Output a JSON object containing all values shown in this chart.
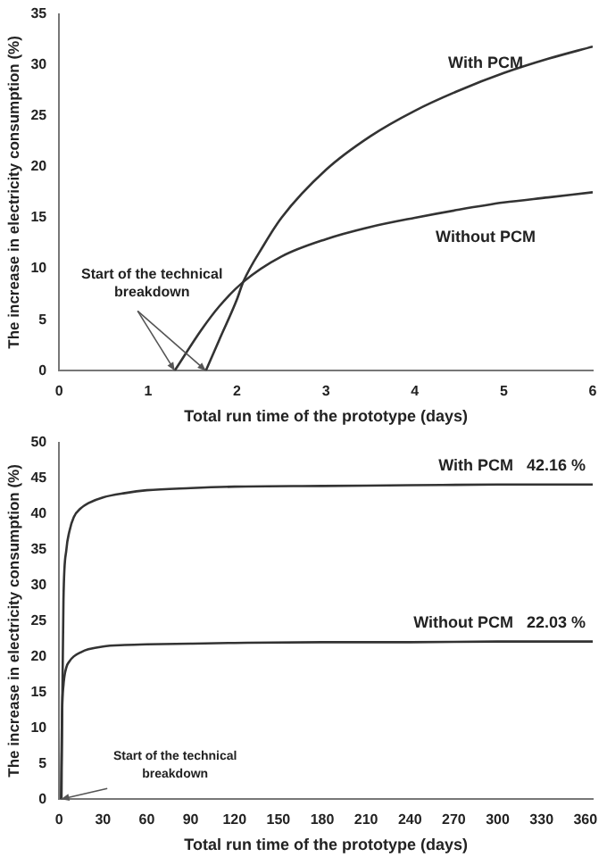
{
  "chart_data": [
    {
      "type": "line",
      "xlabel": "Total run time of the prototype (days)",
      "ylabel": "The increase in electricity consumption (%)",
      "xlim": [
        0,
        6
      ],
      "xticks": [
        0,
        1,
        2,
        3,
        4,
        5,
        6
      ],
      "ylim": [
        0,
        35
      ],
      "yticks": [
        0,
        5,
        10,
        15,
        20,
        25,
        30,
        35
      ],
      "grid": false,
      "legend": false,
      "marker": "none",
      "line_style": "solid",
      "annotations": [
        {
          "text": "Start of the technical breakdown",
          "x": 1.3,
          "y": 0
        }
      ],
      "series": [
        {
          "name": "With PCM",
          "color": "#333333",
          "x": [
            1.65,
            1.8,
            2.0,
            2.07,
            2.3,
            2.5,
            3.0,
            3.5,
            4.0,
            4.5,
            5.0,
            5.5,
            6.0
          ],
          "values": [
            0,
            3,
            7,
            8.7,
            12.3,
            15,
            19.7,
            23,
            25.5,
            27.5,
            29.2,
            30.6,
            31.8
          ]
        },
        {
          "name": "Without PCM",
          "color": "#333333",
          "x": [
            1.3,
            1.6,
            1.8,
            2.07,
            2.5,
            3.0,
            3.5,
            4.0,
            4.5,
            5.0,
            5.5,
            6.0
          ],
          "values": [
            0,
            4,
            6.3,
            8.7,
            11.2,
            12.9,
            14.1,
            15,
            15.8,
            16.5,
            17,
            17.5
          ]
        }
      ]
    },
    {
      "type": "line",
      "xlabel": "Total run time of the prototype (days)",
      "ylabel": "The increase in electricity consumption (%)",
      "xlim": [
        0,
        365
      ],
      "xticks": [
        0,
        30,
        60,
        90,
        120,
        150,
        180,
        210,
        240,
        270,
        300,
        330,
        360
      ],
      "ylim": [
        0,
        50
      ],
      "yticks": [
        0,
        5,
        10,
        15,
        20,
        25,
        30,
        35,
        40,
        45,
        50
      ],
      "grid": false,
      "legend": false,
      "marker": "none",
      "line_style": "solid",
      "annotations": [
        {
          "text": "Start of the technical breakdown",
          "x": 1.3,
          "y": 0
        }
      ],
      "series": [
        {
          "name": "With PCM   42.16 %",
          "color": "#333333",
          "x": [
            1.65,
            2,
            3,
            5,
            7,
            10,
            15,
            20,
            30,
            45,
            60,
            90,
            120,
            180,
            240,
            300,
            365
          ],
          "values": [
            0,
            10,
            28,
            35,
            37.5,
            39.5,
            40.8,
            41.5,
            42.3,
            42.9,
            43.3,
            43.6,
            43.8,
            43.9,
            44,
            44.1,
            44.1
          ]
        },
        {
          "name": "Without PCM   22.03 %",
          "color": "#333333",
          "x": [
            1.3,
            2,
            3,
            5,
            7,
            10,
            15,
            20,
            30,
            45,
            60,
            90,
            120,
            180,
            240,
            300,
            365
          ],
          "values": [
            0,
            12,
            16,
            18.5,
            19.3,
            20,
            20.6,
            21,
            21.4,
            21.6,
            21.7,
            21.8,
            21.9,
            22,
            22,
            22.1,
            22.1
          ]
        }
      ]
    }
  ]
}
